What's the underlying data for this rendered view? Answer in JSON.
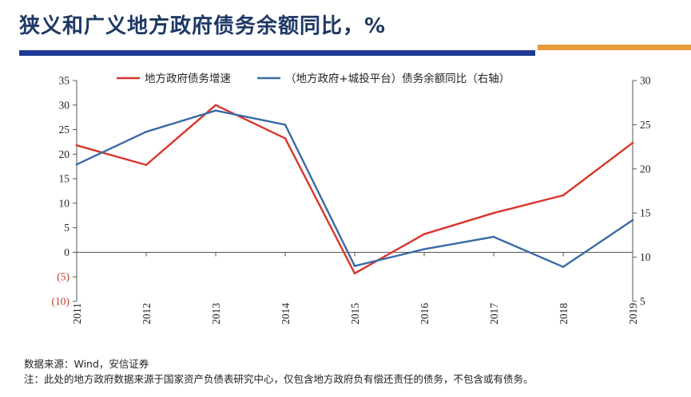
{
  "title": "狭义和广义地方政府债务余额同比，%",
  "source": "数据来源：Wind，安信证券",
  "note": "注：此处的地方政府数据来源于国家资产负债表研究中心，仅包含地方政府负有偿还责任的债务，不包含或有债务。",
  "colors": {
    "title": "#1f3864",
    "header_bar": "#203a96",
    "header_accent": "#e89a3c",
    "series_red": "#d9352b",
    "series_blue": "#3a6aa6",
    "negative_tick": "#c0392b"
  },
  "chart_data": {
    "type": "line",
    "x": [
      "2011",
      "2012",
      "2013",
      "2014",
      "2015",
      "2016",
      "2017",
      "2018",
      "2019"
    ],
    "series": [
      {
        "name": "地方政府债务增速",
        "axis": "left",
        "color": "#d9352b",
        "values": [
          21.8,
          17.8,
          30.0,
          23.2,
          -4.3,
          3.7,
          8.0,
          11.6,
          22.3
        ]
      },
      {
        "name": "（地方政府+城投平台）债务余额同比（右轴）",
        "axis": "right",
        "color": "#3a6aa6",
        "values": [
          20.5,
          24.2,
          26.6,
          25.0,
          9.0,
          10.9,
          12.3,
          8.9,
          14.2
        ]
      }
    ],
    "yleft": {
      "ylim": [
        -10,
        35
      ],
      "ticks": [
        35,
        30,
        25,
        20,
        15,
        10,
        5,
        0,
        -5,
        -10
      ],
      "labels": [
        "35",
        "30",
        "25",
        "20",
        "15",
        "10",
        "5",
        "0",
        "(5)",
        "(10)"
      ]
    },
    "yright": {
      "ylim": [
        5,
        30
      ],
      "ticks": [
        30,
        25,
        20,
        15,
        10,
        5
      ],
      "labels": [
        "30",
        "25",
        "20",
        "15",
        "10",
        "5"
      ]
    },
    "legend_position": "top",
    "grid": false
  }
}
